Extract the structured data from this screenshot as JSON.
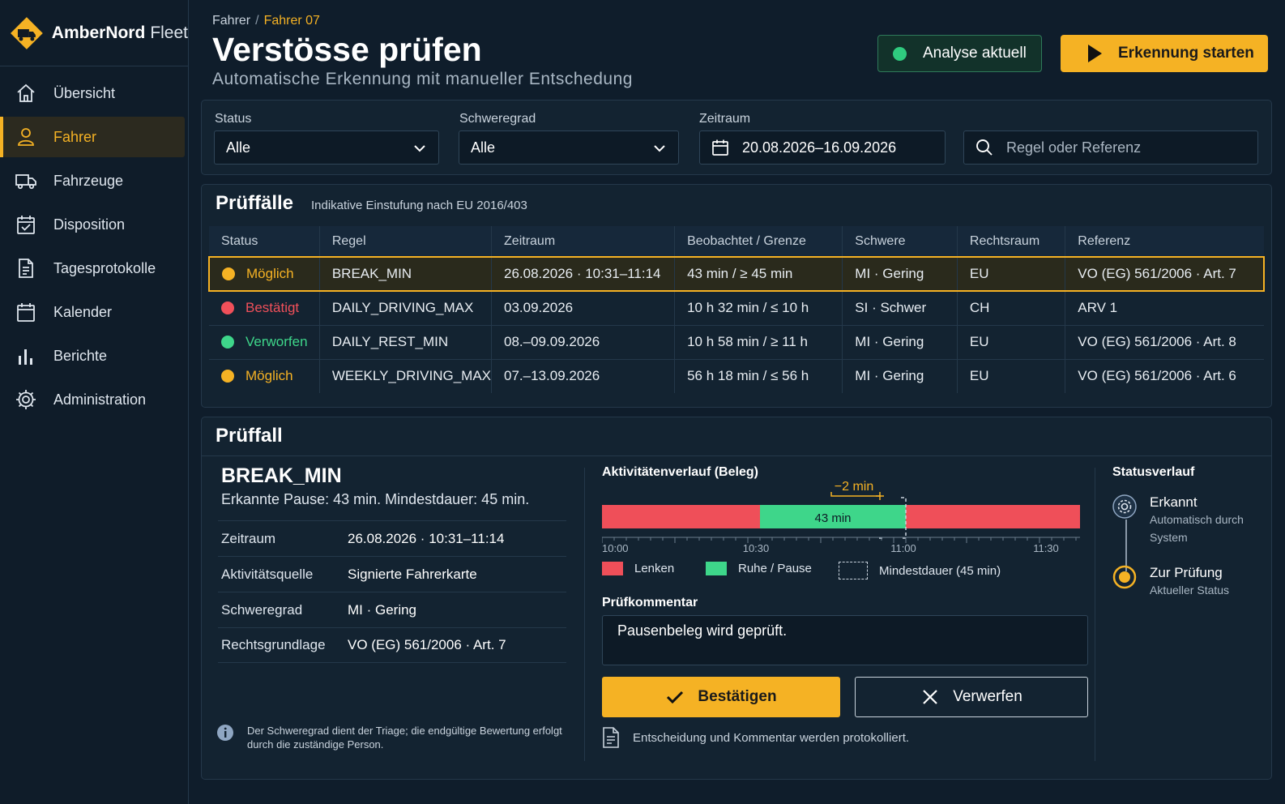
{
  "app": {
    "brand": "AmberNord",
    "brand_suffix": "Fleet"
  },
  "sidebar": {
    "items": [
      {
        "label": "Übersicht",
        "icon": "home-icon"
      },
      {
        "label": "Fahrer",
        "icon": "user-icon",
        "active": true
      },
      {
        "label": "Fahrzeuge",
        "icon": "truck-icon"
      },
      {
        "label": "Disposition",
        "icon": "calendar-check-icon"
      },
      {
        "label": "Tagesprotokolle",
        "icon": "document-icon"
      },
      {
        "label": "Kalender",
        "icon": "calendar-icon"
      },
      {
        "label": "Berichte",
        "icon": "bar-chart-icon"
      },
      {
        "label": "Administration",
        "icon": "gear-icon"
      }
    ]
  },
  "header": {
    "breadcrumb": [
      "Fahrer",
      "Fahrer 07"
    ],
    "title": "Verstösse prüfen",
    "subtitle": "Automatische Erkennung mit manueller Entschedung",
    "status_button": "Analyse aktuell",
    "start_button": "Erkennung starten"
  },
  "filters": {
    "status_label": "Status",
    "status_value": "Alle",
    "severity_label": "Schweregrad",
    "severity_value": "Alle",
    "period_label": "Zeitraum",
    "period_value": "20.08.2026–16.09.2026",
    "search_placeholder": "Regel oder Referenz"
  },
  "cases": {
    "title": "Prüffälle",
    "note": "Indikative Einstufung nach EU 2016/403",
    "columns": [
      "Status",
      "Regel",
      "Zeitraum",
      "Beobachtet / Grenze",
      "Schwere",
      "Rechtsraum",
      "Referenz"
    ],
    "rows": [
      {
        "status": "Möglich",
        "status_color": "#f5b224",
        "rule": "BREAK_MIN",
        "period": "26.08.2026 · 10:31–11:14",
        "observed": "43 min / ≥ 45 min",
        "severity": "MI · Gering",
        "jurisdiction": "EU",
        "reference": "VO (EG) 561/2006 · Art. 7"
      },
      {
        "status": "Bestätigt",
        "status_color": "#f0505a",
        "rule": "DAILY_DRIVING_MAX",
        "period": "03.09.2026",
        "observed": "10 h 32 min / ≤ 10 h",
        "severity": "SI · Schwer",
        "jurisdiction": "CH",
        "reference": "ARV 1"
      },
      {
        "status": "Verworfen",
        "status_color": "#3ed68a",
        "rule": "DAILY_REST_MIN",
        "period": "08.–09.09.2026",
        "observed": "10 h 58 min / ≥ 11 h",
        "severity": "MI · Gering",
        "jurisdiction": "EU",
        "reference": "VO (EG) 561/2006 · Art. 8"
      },
      {
        "status": "Möglich",
        "status_color": "#f5b224",
        "rule": "WEEKLY_DRIVING_MAX",
        "period": "07.–13.09.2026",
        "observed": "56 h 18 min / ≤ 56 h",
        "severity": "MI · Gering",
        "jurisdiction": "EU",
        "reference": "VO (EG) 561/2006 · Art. 6"
      }
    ]
  },
  "detail": {
    "section_title": "Prüffall",
    "rule": "BREAK_MIN",
    "description": "Erkannte Pause: 43 min. Mindestdauer: 45 min.",
    "fields": [
      {
        "key": "Zeitraum",
        "value": "26.08.2026 · 10:31–11:14"
      },
      {
        "key": "Aktivitätsquelle",
        "value": "Signierte Fahrerkarte"
      },
      {
        "key": "Schweregrad",
        "value": "MI · Gering"
      },
      {
        "key": "Rechtsgrundlage",
        "value": "VO (EG) 561/2006 · Art. 7"
      }
    ],
    "info": "Der Schweregrad dient der Triage; die endgültige Bewertung erfolgt durch die zuständige Person."
  },
  "activity": {
    "title": "Aktivitätenverlauf (Beleg)",
    "pause_label": "43 min",
    "deficit_label": "−2 min",
    "ticks": [
      "10:00",
      "10:30",
      "11:00",
      "11:30"
    ],
    "colors": {
      "driving": "#ef4f59",
      "rest": "#3ed68a"
    },
    "legend": {
      "driving": "Lenken",
      "rest": "Ruhe / Pause",
      "min": "Mindestdauer (45 min)"
    }
  },
  "comment": {
    "label": "Prüfkommentar",
    "value": "Pausenbeleg wird geprüft.",
    "confirm": "Bestätigen",
    "reject": "Verwerfen",
    "log_note": "Entscheidung und Kommentar werden protokolliert."
  },
  "status_history": {
    "title": "Statusverlauf",
    "steps": [
      {
        "title": "Erkannt",
        "sub": "Automatisch durch System"
      },
      {
        "title": "Zur Prüfung",
        "sub": "Aktueller Status"
      }
    ]
  }
}
